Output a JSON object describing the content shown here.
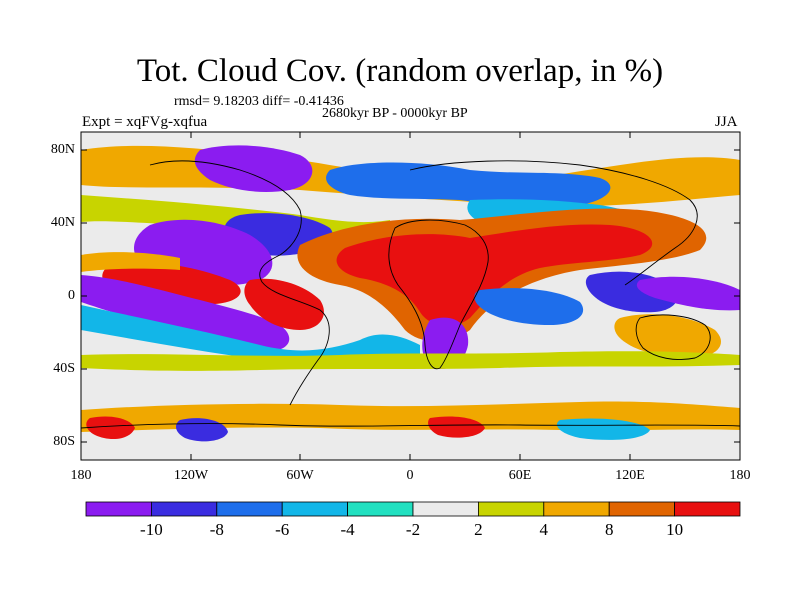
{
  "figure": {
    "title": "Tot. Cloud Cov. (random overlap, in %)",
    "stats": "rmsd= 9.18203 diff= -0.41436",
    "period": "2680kyr BP - 0000kyr BP",
    "experiment": "Expt = xqFVg-xqfua",
    "season": "JJA"
  },
  "axes": {
    "y_ticks": [
      "80N",
      "40N",
      "0",
      "40S",
      "80S"
    ],
    "x_ticks": [
      "180",
      "120W",
      "60W",
      "0",
      "60E",
      "120E",
      "180"
    ]
  },
  "colorbar": {
    "labels": [
      "-10",
      "-8",
      "-6",
      "-4",
      "-2",
      "2",
      "4",
      "8",
      "10"
    ],
    "colors": [
      "#8B1CF0",
      "#3A2CE0",
      "#1E6EEB",
      "#12B6E8",
      "#22E0C0",
      "#EBEBEB",
      "#C8D400",
      "#F0A800",
      "#E06400",
      "#E81010"
    ]
  },
  "palette": {
    "strong_negative": "#8B1CF0",
    "negative": "#3A2CE0",
    "moderate_negative": "#1E6EEB",
    "weak_negative": "#12B6E8",
    "slight_negative": "#22E0C0",
    "neutral": "#EBEBEB",
    "slight_positive": "#C8D400",
    "weak_positive": "#F0A800",
    "moderate_positive": "#E06400",
    "strong_positive": "#E81010"
  }
}
